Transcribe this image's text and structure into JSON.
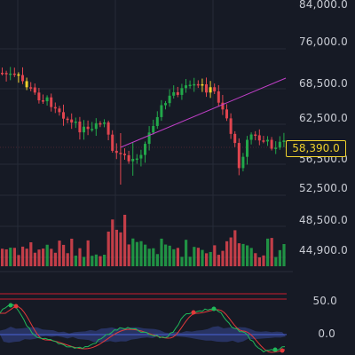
{
  "price_axis": {
    "labels": [
      "84,000.0",
      "76,000.0",
      "68,500.0",
      "62,500.0",
      "56,500.0",
      "52,500.0",
      "48,500.0",
      "44,900.0"
    ]
  },
  "current_price": "58,390.0",
  "oscillator_axis": {
    "labels": [
      "50.0",
      "0.0"
    ]
  },
  "colors": {
    "background": "#161a25",
    "grid": "#262b38",
    "up": "#22a84a",
    "down": "#e0454f",
    "trendline": "#c03fc7",
    "price_badge": "#f0d22d",
    "band": "#c91f2f",
    "zero_line": "#4b63d8",
    "stoch_k": "#20b85a",
    "stoch_d": "#e23a3a"
  }
}
